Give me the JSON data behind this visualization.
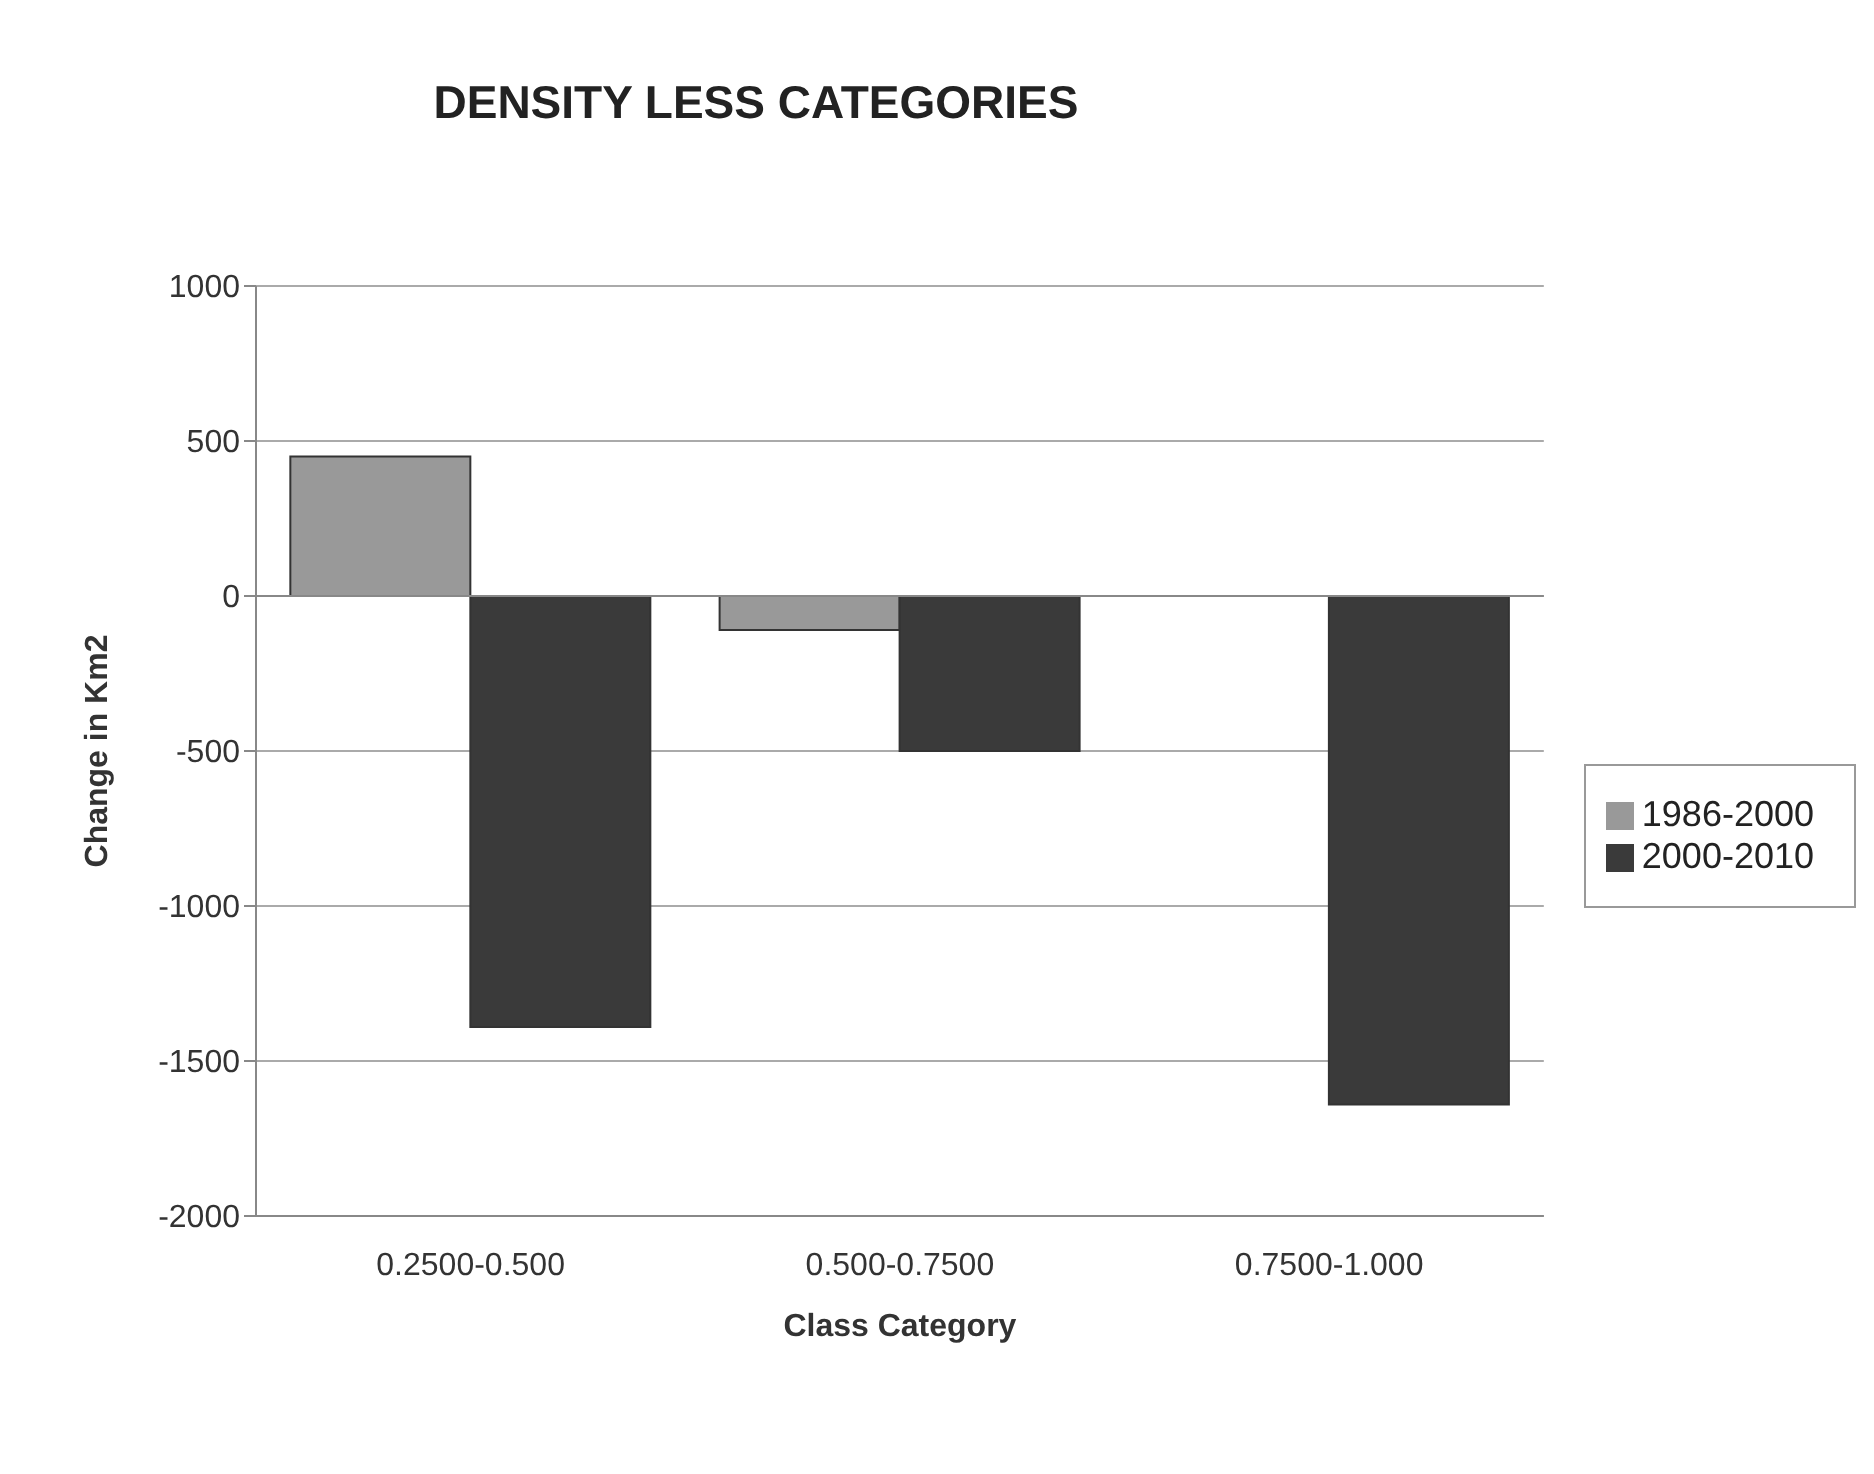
{
  "chart_data": {
    "type": "bar",
    "title": "DENSITY LESS CATEGORIES",
    "xlabel": "Class Category",
    "ylabel": "Change in Km2",
    "categories": [
      "0.2500-0.500",
      "0.500-0.7500",
      "0.7500-1.000"
    ],
    "series": [
      {
        "name": "1986-2000",
        "color": "#999999",
        "values": [
          450,
          -110,
          0
        ]
      },
      {
        "name": "2000-2010",
        "color": "#3a3a3a",
        "values": [
          -1390,
          -500,
          -1640
        ]
      }
    ],
    "ylim": [
      -2000,
      1000
    ],
    "yticks": [
      -2000,
      -1500,
      -1000,
      -500,
      0,
      500,
      1000
    ],
    "grid": "y",
    "legend": "right"
  }
}
